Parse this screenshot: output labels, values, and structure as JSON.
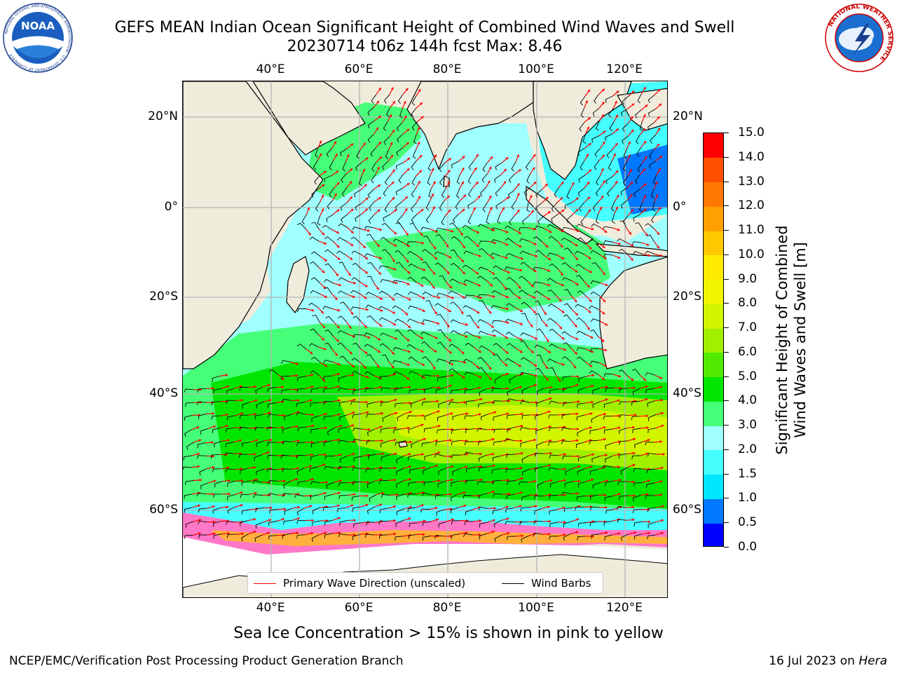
{
  "header": {
    "title_line1": "GEFS MEAN Indian Ocean Significant Height of Combined Wind Waves and Swell",
    "title_line2": "20230714 t06z 144h fcst   Max: 8.46",
    "noaa_logo_text": "NOAA",
    "noaa_ring_text": "NATIONAL OCEANIC AND ATMOSPHERIC ADMINISTRATION · U.S. DEPARTMENT OF COMMERCE",
    "nws_ring_text": "NATIONAL WEATHER SERVICE"
  },
  "map": {
    "lon_ticks": [
      "40°E",
      "60°E",
      "80°E",
      "100°E",
      "120°E"
    ],
    "lat_ticks": [
      "20°N",
      "0°",
      "20°S",
      "40°S",
      "60°S"
    ],
    "land_color": "#f0ecdc",
    "grid": true,
    "legend": {
      "wave_label": "Primary Wave Direction (unscaled)",
      "wave_color": "#ff0000",
      "barb_label": "Wind Barbs",
      "barb_color": "#000000"
    }
  },
  "colorbar": {
    "title_line1": "Significant Height of Combined",
    "title_line2": "Wind Waves and Swell [m]",
    "levels": [
      "0.0",
      "0.5",
      "1.0",
      "1.5",
      "2.0",
      "3.0",
      "4.0",
      "5.0",
      "6.0",
      "7.0",
      "8.0",
      "9.0",
      "10.0",
      "11.0",
      "12.0",
      "13.0",
      "14.0",
      "15.0"
    ],
    "colors": [
      "#0000ff",
      "#0078ff",
      "#00e6ff",
      "#46ffff",
      "#a0ffff",
      "#46ff78",
      "#00e600",
      "#50eb00",
      "#a0f000",
      "#d2f500",
      "#f0f500",
      "#ffeb00",
      "#ffc800",
      "#ffa000",
      "#ff7800",
      "#ff5000",
      "#ff0000"
    ]
  },
  "notes": {
    "sea_ice": "Sea Ice Concentration > 15% is shown in pink to yellow"
  },
  "footer": {
    "left": "NCEP/EMC/Verification Post Processing Product Generation Branch",
    "right_prefix": "16 Jul 2023 on ",
    "right_host": "Hera"
  }
}
